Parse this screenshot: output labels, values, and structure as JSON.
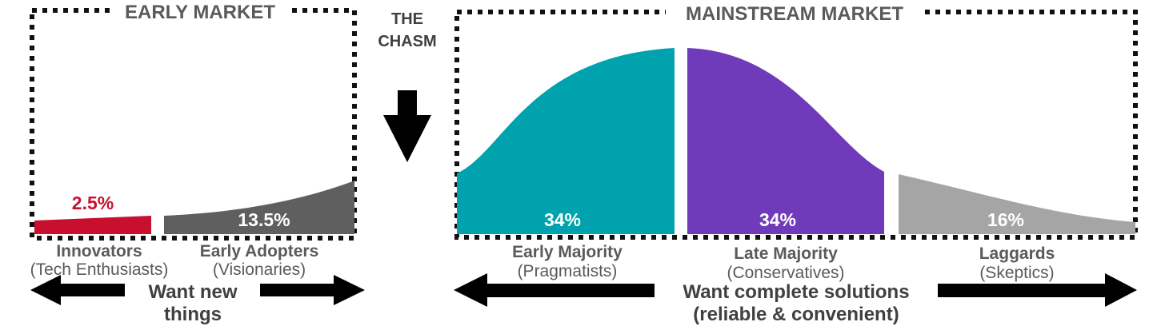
{
  "early_market": {
    "title": "EARLY MARKET",
    "segments": [
      {
        "percent": "2.5%",
        "name": "Innovators",
        "persona": "(Tech Enthusiasts)",
        "color": "#c8102e"
      },
      {
        "percent": "13.5%",
        "name": "Early Adopters",
        "persona": "(Visionaries)",
        "color": "#5f5f5f"
      }
    ],
    "want_line1": "Want new",
    "want_line2": "things"
  },
  "chasm": {
    "line1": "THE",
    "line2": "CHASM",
    "arrow_icon": "down-arrow-icon"
  },
  "mainstream_market": {
    "title": "MAINSTREAM MARKET",
    "segments": [
      {
        "percent": "34%",
        "name": "Early Majority",
        "persona": "(Pragmatists)",
        "color": "#00a3ad"
      },
      {
        "percent": "34%",
        "name": "Late Majority",
        "persona": "(Conservatives)",
        "color": "#6f3bbb"
      },
      {
        "percent": "16%",
        "name": "Laggards",
        "persona": "(Skeptics)",
        "color": "#a5a5a5"
      }
    ],
    "want_line1": "Want complete solutions",
    "want_line2": "(reliable & convenient)"
  },
  "colors": {
    "text_dark": "#404040",
    "text_gray": "#5a5a5a",
    "box_border": "#111111",
    "arrow": "#000000"
  }
}
